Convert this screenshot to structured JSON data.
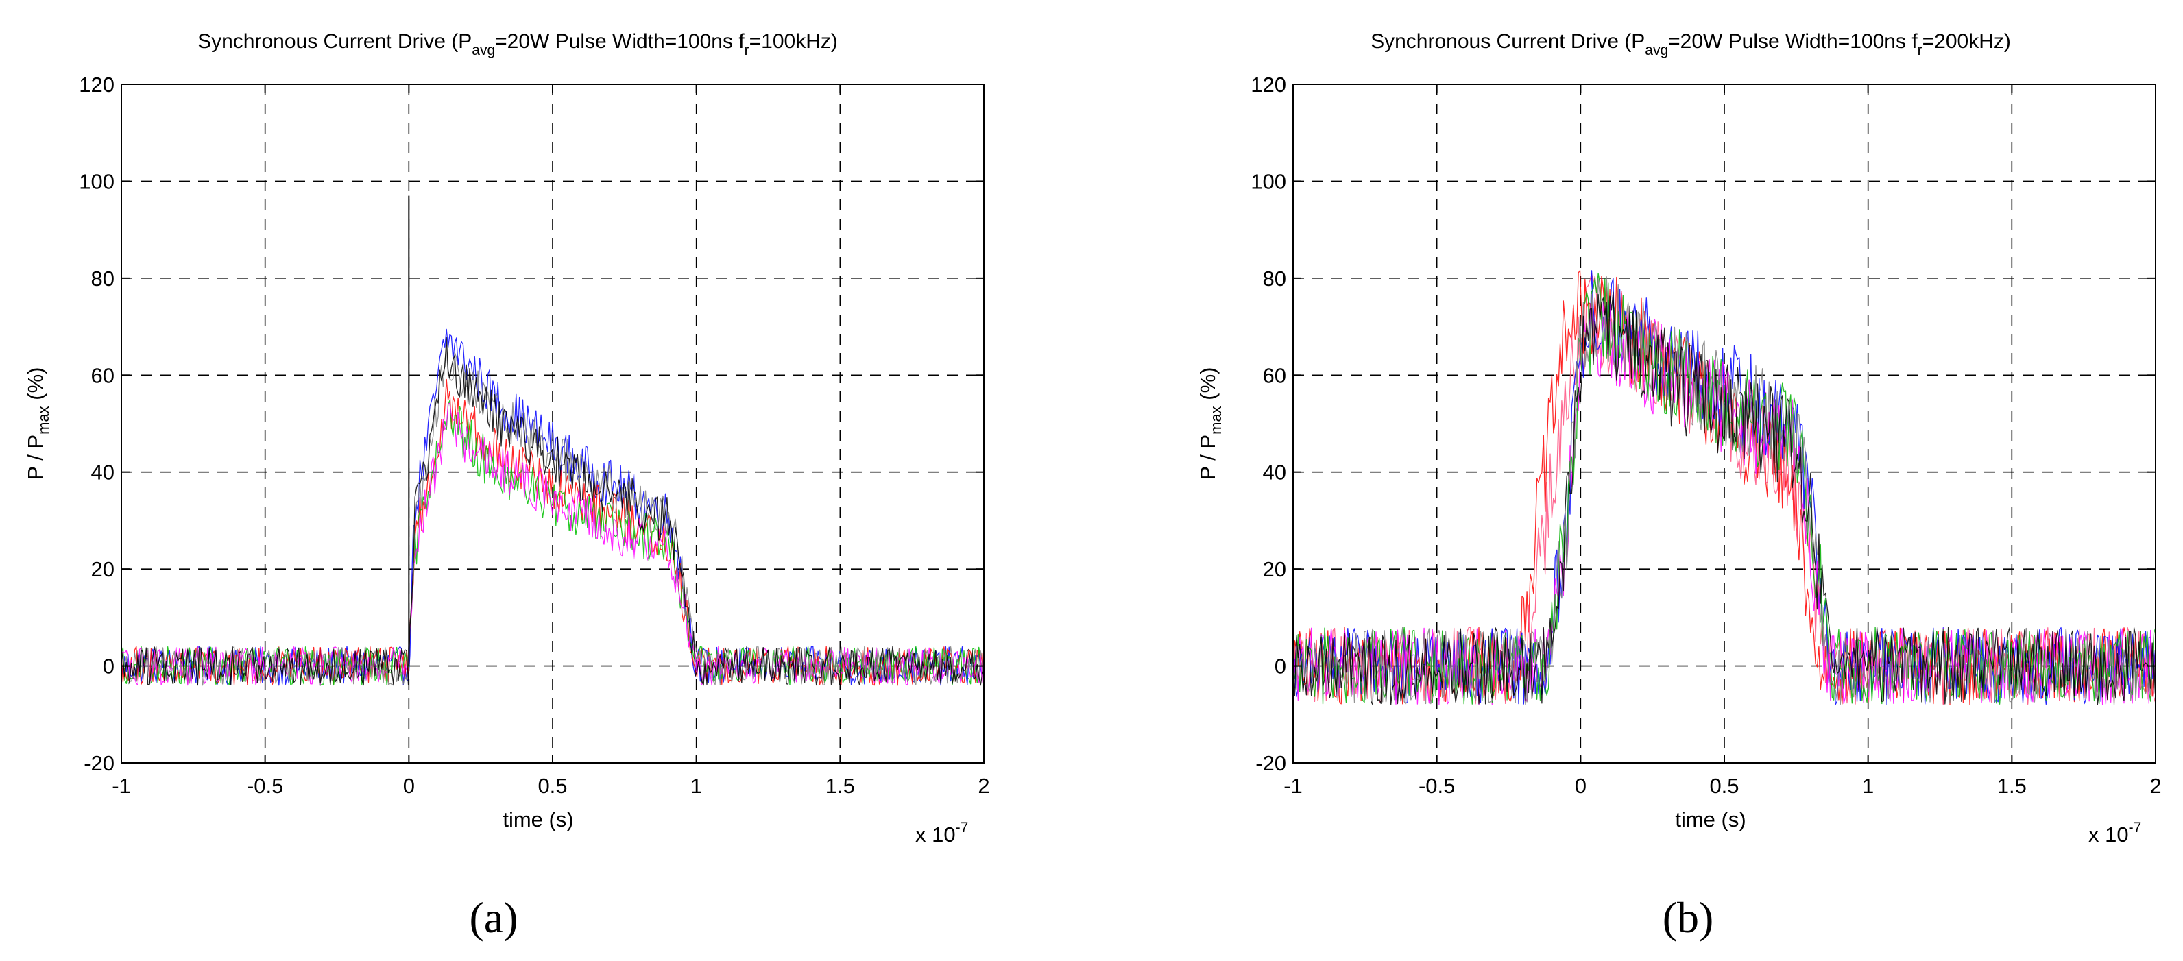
{
  "chart_data": [
    {
      "type": "line",
      "panel_label": "(a)",
      "title_parts": {
        "prefix": "Synchronous Current Drive (P",
        "avg_sub": "avg",
        "mid": "=20W Pulse Width=100ns f",
        "r_sub": "r",
        "suffix": "=100kHz)"
      },
      "ylabel_parts": {
        "prefix": "P / P",
        "sub": "max",
        "suffix": " (%)"
      },
      "xlabel": "time (s)",
      "x_multiplier": "x 10",
      "x_multiplier_exp": "-7",
      "xlim": [
        -1,
        2
      ],
      "ylim": [
        -20,
        120
      ],
      "xticks": [
        -1,
        -0.5,
        0,
        0.5,
        1,
        1.5,
        2
      ],
      "xtick_labels": [
        "-1",
        "-0.5",
        "0",
        "0.5",
        "1",
        "1.5",
        "2"
      ],
      "yticks": [
        -20,
        0,
        20,
        40,
        60,
        80,
        100,
        120
      ],
      "ytick_labels": [
        "-20",
        "0",
        "20",
        "40",
        "60",
        "80",
        "100",
        "120"
      ],
      "grid": true,
      "noise_amplitude": 4,
      "spike": {
        "x": 0.0,
        "y": 97
      },
      "series": [
        {
          "name": "blue",
          "color": "#0000ff",
          "x": [
            -1,
            0,
            0.02,
            0.13,
            0.3,
            0.6,
            0.9,
            0.93,
            1.0,
            2
          ],
          "y": [
            0,
            0,
            32,
            68,
            55,
            41,
            31,
            25,
            0,
            0
          ]
        },
        {
          "name": "red",
          "color": "#ff0000",
          "x": [
            -1,
            0,
            0.02,
            0.13,
            0.3,
            0.6,
            0.9,
            0.93,
            1.0,
            2
          ],
          "y": [
            0,
            0,
            26,
            55,
            44,
            34,
            26,
            21,
            0,
            0
          ]
        },
        {
          "name": "green",
          "color": "#00c000",
          "x": [
            -1,
            0,
            0.02,
            0.13,
            0.3,
            0.6,
            0.9,
            0.93,
            1.0,
            2
          ],
          "y": [
            0,
            0,
            24,
            52,
            40,
            31,
            25,
            20,
            0,
            0
          ]
        },
        {
          "name": "magenta",
          "color": "#ff00ff",
          "x": [
            -1,
            0,
            0.02,
            0.13,
            0.3,
            0.6,
            0.9,
            0.93,
            1.0,
            2
          ],
          "y": [
            0,
            0,
            24,
            50,
            41,
            31,
            24,
            19,
            0,
            0
          ]
        },
        {
          "name": "gray",
          "color": "#808080",
          "x": [
            -1,
            0,
            0.02,
            0.13,
            0.3,
            0.6,
            0.9,
            0.93,
            1.0,
            2
          ],
          "y": [
            0,
            0,
            30,
            64,
            52,
            40,
            30,
            25,
            0,
            0
          ]
        },
        {
          "name": "black",
          "color": "#000000",
          "x": [
            -1,
            0,
            0.02,
            0.13,
            0.3,
            0.6,
            0.9,
            0.93,
            1.0,
            2
          ],
          "y": [
            0,
            0,
            30,
            63,
            51,
            39,
            30,
            24,
            0,
            0
          ]
        }
      ]
    },
    {
      "type": "line",
      "panel_label": "(b)",
      "title_parts": {
        "prefix": "Synchronous Current Drive (P",
        "avg_sub": "avg",
        "mid": "=20W Pulse Width=100ns f",
        "r_sub": "r",
        "suffix": "=200kHz)"
      },
      "ylabel_parts": {
        "prefix": "P / P",
        "sub": "max",
        "suffix": " (%)"
      },
      "xlabel": "time (s)",
      "x_multiplier": "x 10",
      "x_multiplier_exp": "-7",
      "xlim": [
        -1,
        2
      ],
      "ylim": [
        -20,
        120
      ],
      "xticks": [
        -1,
        -0.5,
        0,
        0.5,
        1,
        1.5,
        2
      ],
      "xtick_labels": [
        "-1",
        "-0.5",
        "0",
        "0.5",
        "1",
        "1.5",
        "2"
      ],
      "yticks": [
        -20,
        0,
        20,
        40,
        60,
        80,
        100,
        120
      ],
      "ytick_labels": [
        "-20",
        "0",
        "20",
        "40",
        "60",
        "80",
        "100",
        "120"
      ],
      "grid": true,
      "noise_amplitude": 8,
      "series": [
        {
          "name": "red",
          "color": "#ff0000",
          "x": [
            -1,
            -0.22,
            -0.15,
            -0.05,
            0.05,
            0.4,
            0.7,
            0.77,
            0.82,
            2
          ],
          "y": [
            0,
            0,
            30,
            70,
            74,
            57,
            40,
            25,
            0,
            0
          ]
        },
        {
          "name": "pink",
          "color": "#ff5080",
          "x": [
            -1,
            -0.2,
            -0.12,
            -0.03,
            0.05,
            0.4,
            0.72,
            0.78,
            0.85,
            2
          ],
          "y": [
            0,
            0,
            28,
            66,
            72,
            55,
            42,
            28,
            0,
            0
          ]
        },
        {
          "name": "blue",
          "color": "#0000ff",
          "x": [
            -1,
            -0.12,
            -0.05,
            0.0,
            0.05,
            0.4,
            0.75,
            0.8,
            0.87,
            2
          ],
          "y": [
            0,
            0,
            30,
            68,
            74,
            60,
            50,
            32,
            0,
            0
          ]
        },
        {
          "name": "magenta",
          "color": "#ff00ff",
          "x": [
            -1,
            -0.12,
            -0.05,
            0.0,
            0.05,
            0.4,
            0.74,
            0.79,
            0.86,
            2
          ],
          "y": [
            0,
            0,
            28,
            64,
            70,
            56,
            45,
            30,
            0,
            0
          ]
        },
        {
          "name": "green",
          "color": "#00b000",
          "x": [
            -1,
            -0.12,
            -0.05,
            0.0,
            0.05,
            0.4,
            0.75,
            0.8,
            0.87,
            2
          ],
          "y": [
            0,
            0,
            28,
            64,
            72,
            57,
            47,
            30,
            0,
            0
          ]
        },
        {
          "name": "gray",
          "color": "#808080",
          "x": [
            -1,
            -0.12,
            -0.05,
            0.0,
            0.05,
            0.4,
            0.75,
            0.8,
            0.87,
            2
          ],
          "y": [
            0,
            0,
            28,
            66,
            72,
            58,
            48,
            30,
            0,
            0
          ]
        },
        {
          "name": "black",
          "color": "#000000",
          "x": [
            -1,
            -0.12,
            -0.05,
            0.0,
            0.05,
            0.4,
            0.75,
            0.8,
            0.87,
            2
          ],
          "y": [
            0,
            0,
            28,
            64,
            70,
            56,
            46,
            30,
            0,
            0
          ]
        }
      ]
    }
  ]
}
